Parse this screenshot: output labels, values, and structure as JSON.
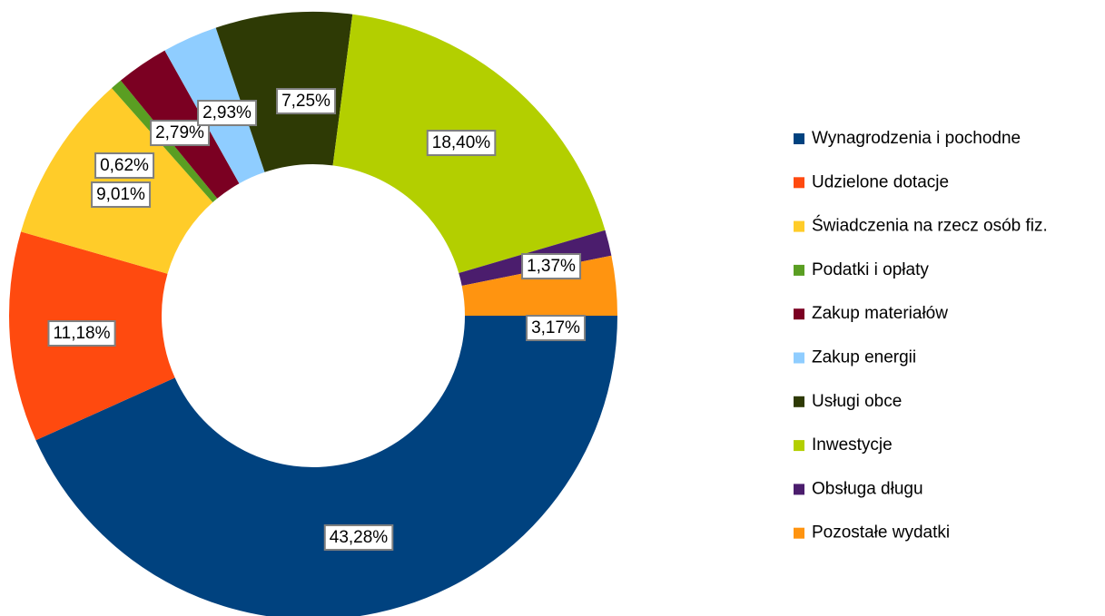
{
  "chart_data": {
    "type": "pie",
    "categories": [
      "Wynagrodzenia i pochodne",
      "Udzielone dotacje",
      "Świadczenia na rzecz osób fiz.",
      "Podatki i opłaty",
      "Zakup materiałów",
      "Zakup energii",
      "Usługi obce",
      "Inwestycje",
      "Obsługa długu",
      "Pozostałe wydatki"
    ],
    "values": [
      43.28,
      11.18,
      9.01,
      0.62,
      2.79,
      2.93,
      7.25,
      18.4,
      1.37,
      3.17
    ],
    "value_labels": [
      "43,28%",
      "11,18%",
      "9,01%",
      "0,62%",
      "2,79%",
      "2,93%",
      "7,25%",
      "18,40%",
      "1,37%",
      "3,17%"
    ],
    "colors": [
      "#00427f",
      "#ff4a0f",
      "#ffcc29",
      "#5a9e22",
      "#7b0022",
      "#8fcdff",
      "#2e3a05",
      "#b3cf00",
      "#4b1d6d",
      "#ff9410"
    ],
    "donut": true,
    "legend": "right"
  }
}
